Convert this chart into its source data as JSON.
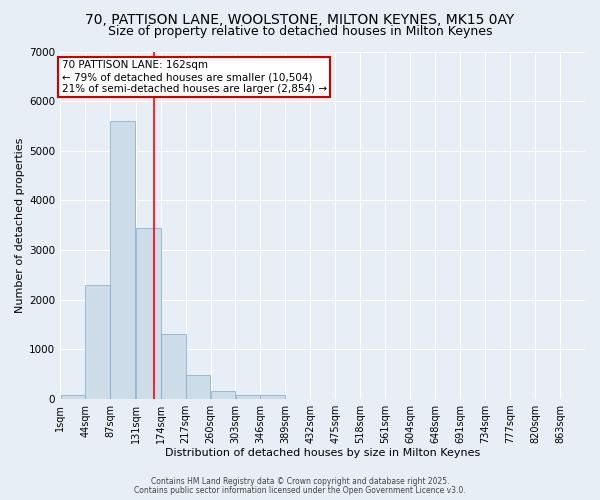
{
  "title": "70, PATTISON LANE, WOOLSTONE, MILTON KEYNES, MK15 0AY",
  "subtitle": "Size of property relative to detached houses in Milton Keynes",
  "xlabel": "Distribution of detached houses by size in Milton Keynes",
  "ylabel": "Number of detached properties",
  "bar_values": [
    80,
    2300,
    5600,
    3450,
    1300,
    480,
    160,
    80,
    80,
    0,
    0,
    0,
    0,
    0,
    0,
    0,
    0,
    0,
    0,
    0
  ],
  "bin_edges": [
    1,
    44,
    87,
    131,
    174,
    217,
    260,
    303,
    346,
    389,
    432,
    475,
    518,
    561,
    604,
    648,
    691,
    734,
    777,
    820,
    863
  ],
  "tick_labels": [
    "1sqm",
    "44sqm",
    "87sqm",
    "131sqm",
    "174sqm",
    "217sqm",
    "260sqm",
    "303sqm",
    "346sqm",
    "389sqm",
    "432sqm",
    "475sqm",
    "518sqm",
    "561sqm",
    "604sqm",
    "648sqm",
    "691sqm",
    "734sqm",
    "777sqm",
    "820sqm",
    "863sqm"
  ],
  "bar_color": "#ccdce8",
  "bar_edgecolor": "#7aaac8",
  "red_line_x": 162,
  "ylim": [
    0,
    7000
  ],
  "yticks": [
    0,
    1000,
    2000,
    3000,
    4000,
    5000,
    6000,
    7000
  ],
  "annotation_text": "70 PATTISON LANE: 162sqm\n← 79% of detached houses are smaller (10,504)\n21% of semi-detached houses are larger (2,854) →",
  "annotation_box_facecolor": "#ffffff",
  "annotation_box_edgecolor": "#cc0000",
  "footnote1": "Contains HM Land Registry data © Crown copyright and database right 2025.",
  "footnote2": "Contains public sector information licensed under the Open Government Licence v3.0.",
  "bg_color": "#e8eef5",
  "grid_color": "#ffffff",
  "title_fontsize": 10,
  "subtitle_fontsize": 9,
  "axis_label_fontsize": 8,
  "tick_fontsize": 7,
  "annotation_fontsize": 7.5
}
